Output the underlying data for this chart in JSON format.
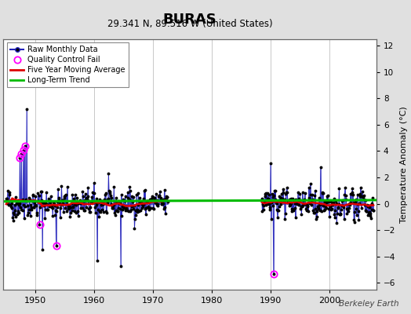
{
  "title": "BURAS",
  "subtitle": "29.341 N, 89.516 W (United States)",
  "ylabel_right": "Temperature Anomaly (°C)",
  "watermark": "Berkeley Earth",
  "xlim": [
    1944.5,
    2008
  ],
  "ylim": [
    -6.5,
    12.5
  ],
  "yticks": [
    -6,
    -4,
    -2,
    0,
    2,
    4,
    6,
    8,
    10,
    12
  ],
  "xticks": [
    1950,
    1960,
    1970,
    1980,
    1990,
    2000
  ],
  "bg_color": "#e0e0e0",
  "plot_bg_color": "#ffffff",
  "grid_color": "#c8c8c8",
  "raw_line_color": "#2222bb",
  "raw_dot_color": "#000000",
  "qc_fail_color": "#ff00ff",
  "moving_avg_color": "#dd0000",
  "trend_color": "#00bb00",
  "legend_loc": "upper left",
  "period1_start": 1945.0,
  "period1_end": 1972.5,
  "period2_start": 1988.5,
  "period2_end": 2007.5
}
